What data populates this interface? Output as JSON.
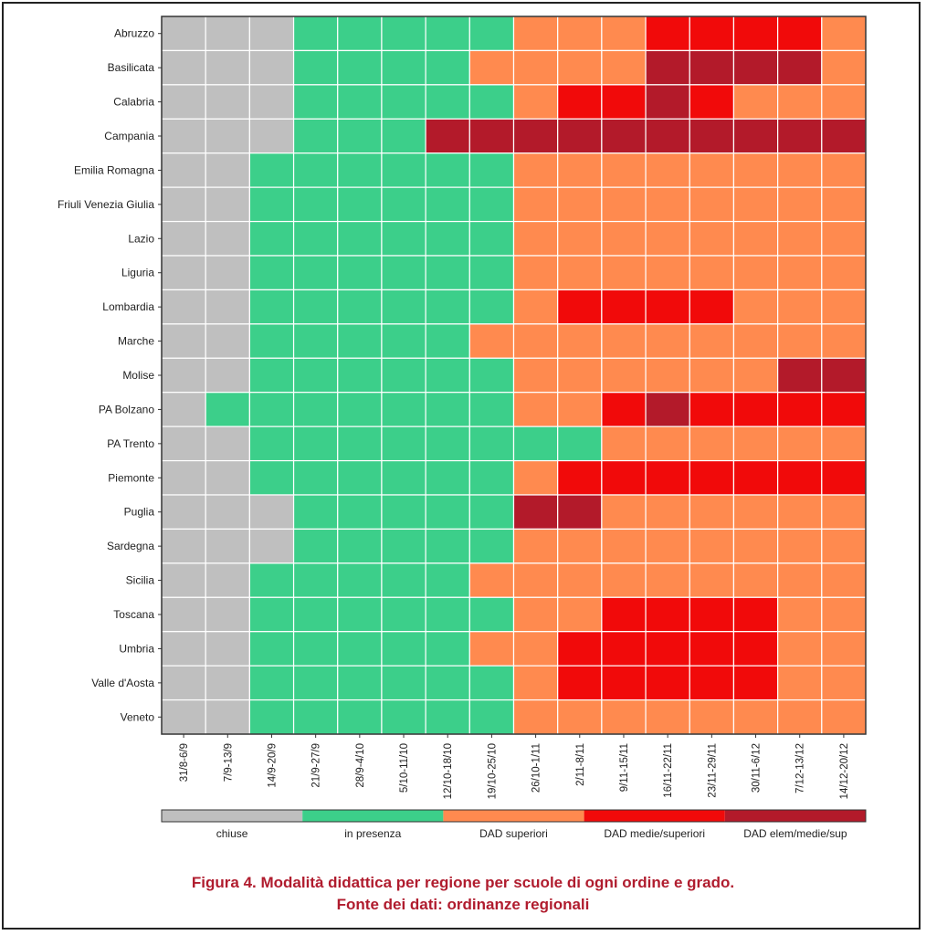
{
  "chart_data": {
    "type": "heatmap",
    "regions": [
      "Abruzzo",
      "Basilicata",
      "Calabria",
      "Campania",
      "Emilia Romagna",
      "Friuli Venezia Giulia",
      "Lazio",
      "Liguria",
      "Lombardia",
      "Marche",
      "Molise",
      "PA Bolzano",
      "PA Trento",
      "Piemonte",
      "Puglia",
      "Sardegna",
      "Sicilia",
      "Toscana",
      "Umbria",
      "Valle d'Aosta",
      "Veneto"
    ],
    "weeks": [
      "31/8-6/9",
      "7/9-13/9",
      "14/9-20/9",
      "21/9-27/9",
      "28/9-4/10",
      "5/10-11/10",
      "12/10-18/10",
      "19/10-25/10",
      "26/10-1/11",
      "2/11-8/11",
      "9/11-15/11",
      "16/11-22/11",
      "23/11-29/11",
      "30/11-6/12",
      "7/12-13/12",
      "14/12-20/12"
    ],
    "categories": [
      {
        "code": 0,
        "label": "chiuse",
        "color": "#bfbfbf"
      },
      {
        "code": 1,
        "label": "in presenza",
        "color": "#3ccf8a"
      },
      {
        "code": 2,
        "label": "DAD superiori",
        "color": "#ff8a4f"
      },
      {
        "code": 3,
        "label": "DAD medie/superiori",
        "color": "#f10a0a"
      },
      {
        "code": 4,
        "label": "DAD elem/medie/sup",
        "color": "#b31a2a"
      }
    ],
    "values": [
      [
        0,
        0,
        0,
        1,
        1,
        1,
        1,
        1,
        2,
        2,
        2,
        3,
        3,
        3,
        3,
        2
      ],
      [
        0,
        0,
        0,
        1,
        1,
        1,
        1,
        2,
        2,
        2,
        2,
        4,
        4,
        4,
        4,
        2
      ],
      [
        0,
        0,
        0,
        1,
        1,
        1,
        1,
        1,
        2,
        3,
        3,
        4,
        3,
        2,
        2,
        2
      ],
      [
        0,
        0,
        0,
        1,
        1,
        1,
        4,
        4,
        4,
        4,
        4,
        4,
        4,
        4,
        4,
        4
      ],
      [
        0,
        0,
        1,
        1,
        1,
        1,
        1,
        1,
        2,
        2,
        2,
        2,
        2,
        2,
        2,
        2
      ],
      [
        0,
        0,
        1,
        1,
        1,
        1,
        1,
        1,
        2,
        2,
        2,
        2,
        2,
        2,
        2,
        2
      ],
      [
        0,
        0,
        1,
        1,
        1,
        1,
        1,
        1,
        2,
        2,
        2,
        2,
        2,
        2,
        2,
        2
      ],
      [
        0,
        0,
        1,
        1,
        1,
        1,
        1,
        1,
        2,
        2,
        2,
        2,
        2,
        2,
        2,
        2
      ],
      [
        0,
        0,
        1,
        1,
        1,
        1,
        1,
        1,
        2,
        3,
        3,
        3,
        3,
        2,
        2,
        2
      ],
      [
        0,
        0,
        1,
        1,
        1,
        1,
        1,
        2,
        2,
        2,
        2,
        2,
        2,
        2,
        2,
        2
      ],
      [
        0,
        0,
        1,
        1,
        1,
        1,
        1,
        1,
        2,
        2,
        2,
        2,
        2,
        2,
        4,
        4
      ],
      [
        0,
        1,
        1,
        1,
        1,
        1,
        1,
        1,
        2,
        2,
        3,
        4,
        3,
        3,
        3,
        3
      ],
      [
        0,
        0,
        1,
        1,
        1,
        1,
        1,
        1,
        1,
        1,
        2,
        2,
        2,
        2,
        2,
        2
      ],
      [
        0,
        0,
        1,
        1,
        1,
        1,
        1,
        1,
        2,
        3,
        3,
        3,
        3,
        3,
        3,
        3
      ],
      [
        0,
        0,
        0,
        1,
        1,
        1,
        1,
        1,
        4,
        4,
        2,
        2,
        2,
        2,
        2,
        2
      ],
      [
        0,
        0,
        0,
        1,
        1,
        1,
        1,
        1,
        2,
        2,
        2,
        2,
        2,
        2,
        2,
        2
      ],
      [
        0,
        0,
        1,
        1,
        1,
        1,
        1,
        2,
        2,
        2,
        2,
        2,
        2,
        2,
        2,
        2
      ],
      [
        0,
        0,
        1,
        1,
        1,
        1,
        1,
        1,
        2,
        2,
        3,
        3,
        3,
        3,
        2,
        2
      ],
      [
        0,
        0,
        1,
        1,
        1,
        1,
        1,
        2,
        2,
        3,
        3,
        3,
        3,
        3,
        2,
        2
      ],
      [
        0,
        0,
        1,
        1,
        1,
        1,
        1,
        1,
        2,
        3,
        3,
        3,
        3,
        3,
        2,
        2
      ],
      [
        0,
        0,
        1,
        1,
        1,
        1,
        1,
        1,
        2,
        2,
        2,
        2,
        2,
        2,
        2,
        2
      ]
    ],
    "grid": true,
    "legend_placement": "bottom"
  },
  "caption": {
    "line1": "Figura 4. Modalità didattica per regione per scuole di ogni ordine e grado.",
    "line2": "Fonte dei dati: ordinanze regionali"
  }
}
